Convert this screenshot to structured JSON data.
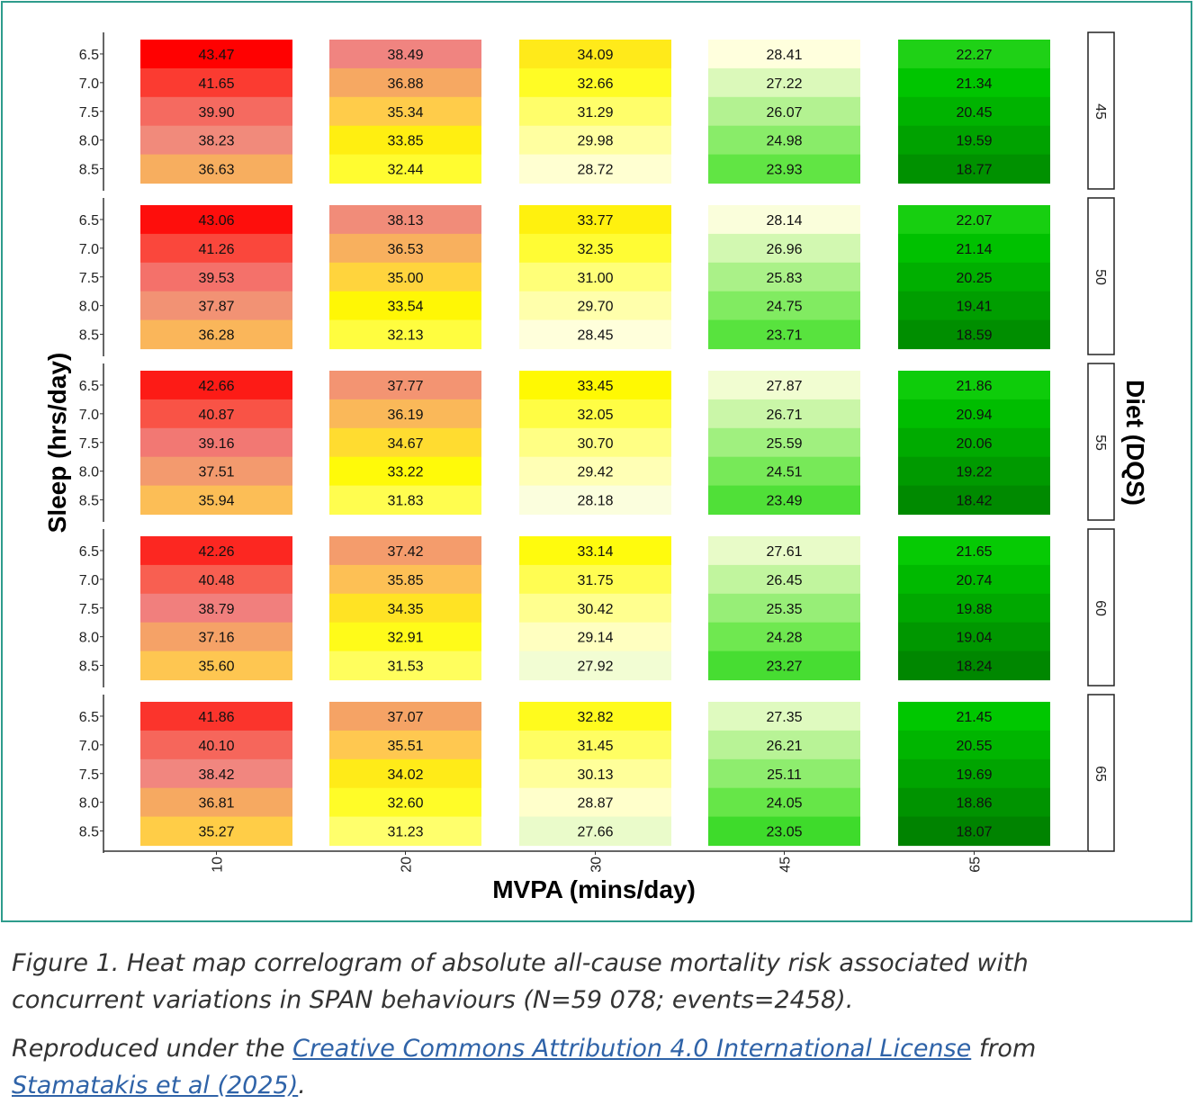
{
  "chart_data": {
    "type": "heatmap",
    "xlabel": "MVPA (mins/day)",
    "ylabel": "Sleep (hrs/day)",
    "facet_label": "Diet (DQS)",
    "x_categories": [
      "10",
      "20",
      "30",
      "45",
      "65"
    ],
    "y_categories": [
      "6.5",
      "7.0",
      "7.5",
      "8.0",
      "8.5"
    ],
    "panels": [
      {
        "diet": "45",
        "values": [
          [
            43.47,
            38.49,
            34.09,
            28.41,
            22.27
          ],
          [
            41.65,
            36.88,
            32.66,
            27.22,
            21.34
          ],
          [
            39.9,
            35.34,
            31.29,
            26.07,
            20.45
          ],
          [
            38.23,
            33.85,
            29.98,
            24.98,
            19.59
          ],
          [
            36.63,
            32.44,
            28.72,
            23.93,
            18.77
          ]
        ]
      },
      {
        "diet": "50",
        "values": [
          [
            43.06,
            38.13,
            33.77,
            28.14,
            22.07
          ],
          [
            41.26,
            36.53,
            32.35,
            26.96,
            21.14
          ],
          [
            39.53,
            35.0,
            31.0,
            25.83,
            20.25
          ],
          [
            37.87,
            33.54,
            29.7,
            24.75,
            19.41
          ],
          [
            36.28,
            32.13,
            28.45,
            23.71,
            18.59
          ]
        ]
      },
      {
        "diet": "55",
        "values": [
          [
            42.66,
            37.77,
            33.45,
            27.87,
            21.86
          ],
          [
            40.87,
            36.19,
            32.05,
            26.71,
            20.94
          ],
          [
            39.16,
            34.67,
            30.7,
            25.59,
            20.06
          ],
          [
            37.51,
            33.22,
            29.42,
            24.51,
            19.22
          ],
          [
            35.94,
            31.83,
            28.18,
            23.49,
            18.42
          ]
        ]
      },
      {
        "diet": "60",
        "values": [
          [
            42.26,
            37.42,
            33.14,
            27.61,
            21.65
          ],
          [
            40.48,
            35.85,
            31.75,
            26.45,
            20.74
          ],
          [
            38.79,
            34.35,
            30.42,
            25.35,
            19.88
          ],
          [
            37.16,
            32.91,
            29.14,
            24.28,
            19.04
          ],
          [
            35.6,
            31.53,
            27.92,
            23.27,
            18.24
          ]
        ]
      },
      {
        "diet": "65",
        "values": [
          [
            41.86,
            37.07,
            32.82,
            27.35,
            21.45
          ],
          [
            40.1,
            35.51,
            31.45,
            26.21,
            20.55
          ],
          [
            38.42,
            34.02,
            30.13,
            25.11,
            19.69
          ],
          [
            36.81,
            32.6,
            28.87,
            24.05,
            18.86
          ],
          [
            35.27,
            31.23,
            27.66,
            23.05,
            18.07
          ]
        ]
      }
    ]
  },
  "caption": {
    "line1": "Figure 1. Heat map correlogram of absolute all-cause mortality risk associated with",
    "line2": "concurrent variations in SPAN behaviours (N=59 078; events=2458)."
  },
  "credit": {
    "prefix": "Reproduced under the ",
    "license_link": "Creative Commons Attribution 4.0 International License",
    "middle": " from",
    "source_link": "Stamatakis et al (2025)",
    "suffix": "."
  },
  "colors": {
    "frame": "#2e9c8c",
    "link": "#2f63a8"
  }
}
